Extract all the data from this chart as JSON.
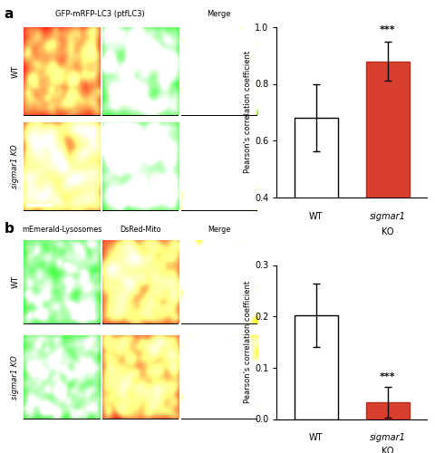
{
  "panel_a": {
    "categories": [
      "WT",
      "sigmar1\nKO"
    ],
    "values": [
      0.68,
      0.88
    ],
    "errors": [
      0.12,
      0.07
    ],
    "bar_colors": [
      "white",
      "#d93f2e"
    ],
    "edge_colors": [
      "black",
      "#b03020"
    ],
    "ylabel": "Pearson's correlation coefficient",
    "ylim": [
      0.4,
      1.0
    ],
    "yticks": [
      0.4,
      0.6,
      0.8,
      1.0
    ],
    "significance": "***"
  },
  "panel_b": {
    "categories": [
      "WT",
      "sigmar1\nKO"
    ],
    "values": [
      0.202,
      0.032
    ],
    "errors": [
      0.062,
      0.03
    ],
    "bar_colors": [
      "white",
      "#d93f2e"
    ],
    "edge_colors": [
      "black",
      "#b03020"
    ],
    "ylabel": "Pearson's correlation coefficient",
    "ylim": [
      0.0,
      0.3
    ],
    "yticks": [
      0.0,
      0.1,
      0.2,
      0.3
    ],
    "significance": "***"
  },
  "figure_size": [
    4.81,
    5.0
  ],
  "dpi": 100,
  "panel_a_label": "a",
  "panel_b_label": "b",
  "panel_a_col_headers": [
    "GFP-mRFP-LC3 (ptfLC3)",
    "Merge"
  ],
  "panel_b_col_headers": [
    "mEmerald-Lysosomes",
    "DsRed-Mito",
    "Merge"
  ],
  "row_labels_a": [
    "WT",
    "sigmar1 KO"
  ],
  "row_labels_b": [
    "WT",
    "sigmar1 KO"
  ]
}
